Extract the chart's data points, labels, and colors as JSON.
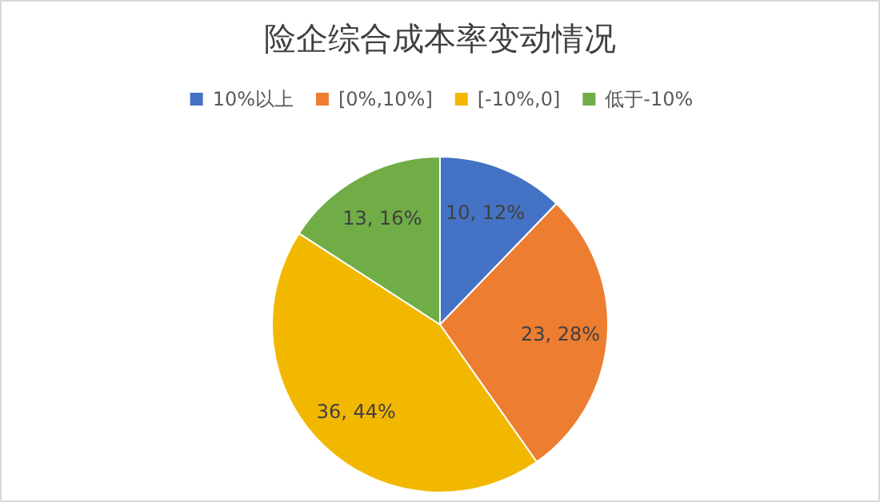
{
  "chart_data": {
    "type": "pie",
    "title": "险企综合成本率变动情况",
    "categories": [
      "10%以上",
      "[0%,10%]",
      "[-10%,0]",
      "低于-10%"
    ],
    "values": [
      10,
      23,
      36,
      13
    ],
    "colors": [
      "#4472c4",
      "#ed7d31",
      "#f2b800",
      "#70ad47"
    ],
    "value_labels": [
      "10, 12%",
      "23, 28%",
      "36, 44%",
      "13, 16%"
    ],
    "legend": "top"
  }
}
